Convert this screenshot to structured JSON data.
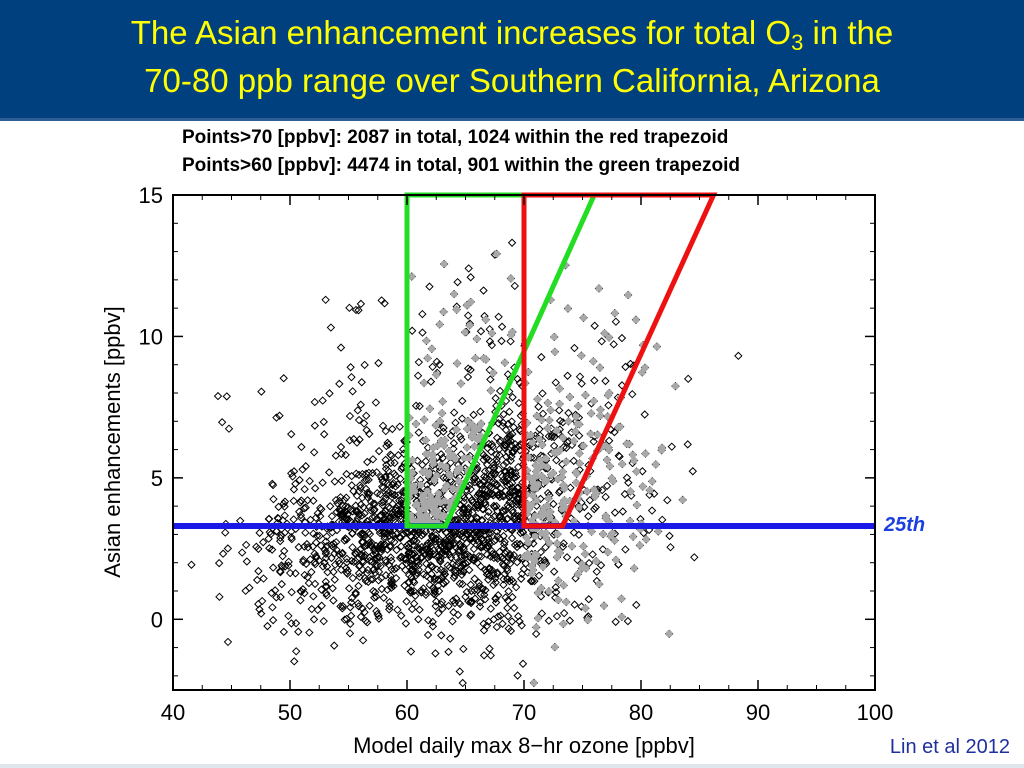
{
  "slide": {
    "title_line1_pre": "The Asian enhancement increases for total O",
    "title_line1_sub": "3",
    "title_line1_post": " in  the",
    "title_line2": "70-80 ppb range over Southern California, Arizona",
    "citation": "Lin et al 2012",
    "colors": {
      "title_bar": "#00407f",
      "title_text": "#ffff00",
      "citation_text": "#1f2f9f"
    }
  },
  "chart_data": {
    "type": "scatter",
    "subtitle_line1": "Points>70 [ppbv]: 2087 in total, 1024 within the red trapezoid",
    "subtitle_line2": "Points>60 [ppbv]: 4474 in total, 901 within the green trapezoid",
    "xlabel": "Model daily max 8−hr ozone [ppbv]",
    "ylabel": "Asian enhancements [ppbv]",
    "xlim": [
      40,
      100
    ],
    "ylim": [
      -2.5,
      15
    ],
    "xticks": [
      "40",
      "50",
      "60",
      "70",
      "80",
      "90",
      "100"
    ],
    "yticks": [
      "0",
      "5",
      "10",
      "15"
    ],
    "reference_line": {
      "y": 3.3,
      "label": "25th",
      "color": "#1a1ae6"
    },
    "trapezoids": [
      {
        "name": "green",
        "color": "#22dd22",
        "points": [
          [
            60,
            15
          ],
          [
            60,
            3.3
          ],
          [
            63.3,
            3.3
          ],
          [
            76,
            15
          ]
        ]
      },
      {
        "name": "red",
        "color": "#ee1111",
        "points": [
          [
            70,
            15
          ],
          [
            70,
            3.3
          ],
          [
            73.3,
            3.3
          ],
          [
            86.2,
            15
          ]
        ]
      }
    ],
    "series": [
      {
        "name": "all points",
        "marker": "open-diamond",
        "color": "#000000"
      },
      {
        "name": "trapezoid points",
        "marker": "filled-circle",
        "color": "#a8a8a8"
      }
    ]
  }
}
